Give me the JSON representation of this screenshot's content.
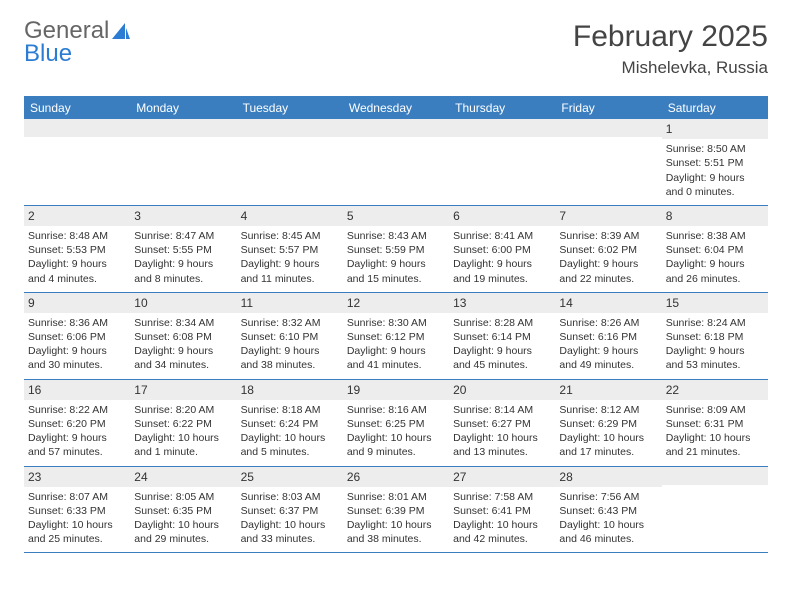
{
  "logo": {
    "part1": "General",
    "part2": "Blue",
    "sail_color": "#2b7cd3"
  },
  "title": "February 2025",
  "location": "Mishelevka, Russia",
  "colors": {
    "header_bg": "#3b7ec0",
    "header_text": "#ffffff",
    "daynum_bg": "#ededed",
    "border": "#3b7ec0",
    "text": "#333333",
    "logo_gray": "#666666",
    "logo_blue": "#2b7cd3"
  },
  "day_names": [
    "Sunday",
    "Monday",
    "Tuesday",
    "Wednesday",
    "Thursday",
    "Friday",
    "Saturday"
  ],
  "weeks": [
    [
      {
        "empty": true
      },
      {
        "empty": true
      },
      {
        "empty": true
      },
      {
        "empty": true
      },
      {
        "empty": true
      },
      {
        "empty": true
      },
      {
        "day": "1",
        "sunrise": "Sunrise: 8:50 AM",
        "sunset": "Sunset: 5:51 PM",
        "dl1": "Daylight: 9 hours",
        "dl2": "and 0 minutes."
      }
    ],
    [
      {
        "day": "2",
        "sunrise": "Sunrise: 8:48 AM",
        "sunset": "Sunset: 5:53 PM",
        "dl1": "Daylight: 9 hours",
        "dl2": "and 4 minutes."
      },
      {
        "day": "3",
        "sunrise": "Sunrise: 8:47 AM",
        "sunset": "Sunset: 5:55 PM",
        "dl1": "Daylight: 9 hours",
        "dl2": "and 8 minutes."
      },
      {
        "day": "4",
        "sunrise": "Sunrise: 8:45 AM",
        "sunset": "Sunset: 5:57 PM",
        "dl1": "Daylight: 9 hours",
        "dl2": "and 11 minutes."
      },
      {
        "day": "5",
        "sunrise": "Sunrise: 8:43 AM",
        "sunset": "Sunset: 5:59 PM",
        "dl1": "Daylight: 9 hours",
        "dl2": "and 15 minutes."
      },
      {
        "day": "6",
        "sunrise": "Sunrise: 8:41 AM",
        "sunset": "Sunset: 6:00 PM",
        "dl1": "Daylight: 9 hours",
        "dl2": "and 19 minutes."
      },
      {
        "day": "7",
        "sunrise": "Sunrise: 8:39 AM",
        "sunset": "Sunset: 6:02 PM",
        "dl1": "Daylight: 9 hours",
        "dl2": "and 22 minutes."
      },
      {
        "day": "8",
        "sunrise": "Sunrise: 8:38 AM",
        "sunset": "Sunset: 6:04 PM",
        "dl1": "Daylight: 9 hours",
        "dl2": "and 26 minutes."
      }
    ],
    [
      {
        "day": "9",
        "sunrise": "Sunrise: 8:36 AM",
        "sunset": "Sunset: 6:06 PM",
        "dl1": "Daylight: 9 hours",
        "dl2": "and 30 minutes."
      },
      {
        "day": "10",
        "sunrise": "Sunrise: 8:34 AM",
        "sunset": "Sunset: 6:08 PM",
        "dl1": "Daylight: 9 hours",
        "dl2": "and 34 minutes."
      },
      {
        "day": "11",
        "sunrise": "Sunrise: 8:32 AM",
        "sunset": "Sunset: 6:10 PM",
        "dl1": "Daylight: 9 hours",
        "dl2": "and 38 minutes."
      },
      {
        "day": "12",
        "sunrise": "Sunrise: 8:30 AM",
        "sunset": "Sunset: 6:12 PM",
        "dl1": "Daylight: 9 hours",
        "dl2": "and 41 minutes."
      },
      {
        "day": "13",
        "sunrise": "Sunrise: 8:28 AM",
        "sunset": "Sunset: 6:14 PM",
        "dl1": "Daylight: 9 hours",
        "dl2": "and 45 minutes."
      },
      {
        "day": "14",
        "sunrise": "Sunrise: 8:26 AM",
        "sunset": "Sunset: 6:16 PM",
        "dl1": "Daylight: 9 hours",
        "dl2": "and 49 minutes."
      },
      {
        "day": "15",
        "sunrise": "Sunrise: 8:24 AM",
        "sunset": "Sunset: 6:18 PM",
        "dl1": "Daylight: 9 hours",
        "dl2": "and 53 minutes."
      }
    ],
    [
      {
        "day": "16",
        "sunrise": "Sunrise: 8:22 AM",
        "sunset": "Sunset: 6:20 PM",
        "dl1": "Daylight: 9 hours",
        "dl2": "and 57 minutes."
      },
      {
        "day": "17",
        "sunrise": "Sunrise: 8:20 AM",
        "sunset": "Sunset: 6:22 PM",
        "dl1": "Daylight: 10 hours",
        "dl2": "and 1 minute."
      },
      {
        "day": "18",
        "sunrise": "Sunrise: 8:18 AM",
        "sunset": "Sunset: 6:24 PM",
        "dl1": "Daylight: 10 hours",
        "dl2": "and 5 minutes."
      },
      {
        "day": "19",
        "sunrise": "Sunrise: 8:16 AM",
        "sunset": "Sunset: 6:25 PM",
        "dl1": "Daylight: 10 hours",
        "dl2": "and 9 minutes."
      },
      {
        "day": "20",
        "sunrise": "Sunrise: 8:14 AM",
        "sunset": "Sunset: 6:27 PM",
        "dl1": "Daylight: 10 hours",
        "dl2": "and 13 minutes."
      },
      {
        "day": "21",
        "sunrise": "Sunrise: 8:12 AM",
        "sunset": "Sunset: 6:29 PM",
        "dl1": "Daylight: 10 hours",
        "dl2": "and 17 minutes."
      },
      {
        "day": "22",
        "sunrise": "Sunrise: 8:09 AM",
        "sunset": "Sunset: 6:31 PM",
        "dl1": "Daylight: 10 hours",
        "dl2": "and 21 minutes."
      }
    ],
    [
      {
        "day": "23",
        "sunrise": "Sunrise: 8:07 AM",
        "sunset": "Sunset: 6:33 PM",
        "dl1": "Daylight: 10 hours",
        "dl2": "and 25 minutes."
      },
      {
        "day": "24",
        "sunrise": "Sunrise: 8:05 AM",
        "sunset": "Sunset: 6:35 PM",
        "dl1": "Daylight: 10 hours",
        "dl2": "and 29 minutes."
      },
      {
        "day": "25",
        "sunrise": "Sunrise: 8:03 AM",
        "sunset": "Sunset: 6:37 PM",
        "dl1": "Daylight: 10 hours",
        "dl2": "and 33 minutes."
      },
      {
        "day": "26",
        "sunrise": "Sunrise: 8:01 AM",
        "sunset": "Sunset: 6:39 PM",
        "dl1": "Daylight: 10 hours",
        "dl2": "and 38 minutes."
      },
      {
        "day": "27",
        "sunrise": "Sunrise: 7:58 AM",
        "sunset": "Sunset: 6:41 PM",
        "dl1": "Daylight: 10 hours",
        "dl2": "and 42 minutes."
      },
      {
        "day": "28",
        "sunrise": "Sunrise: 7:56 AM",
        "sunset": "Sunset: 6:43 PM",
        "dl1": "Daylight: 10 hours",
        "dl2": "and 46 minutes."
      },
      {
        "empty": true
      }
    ]
  ]
}
